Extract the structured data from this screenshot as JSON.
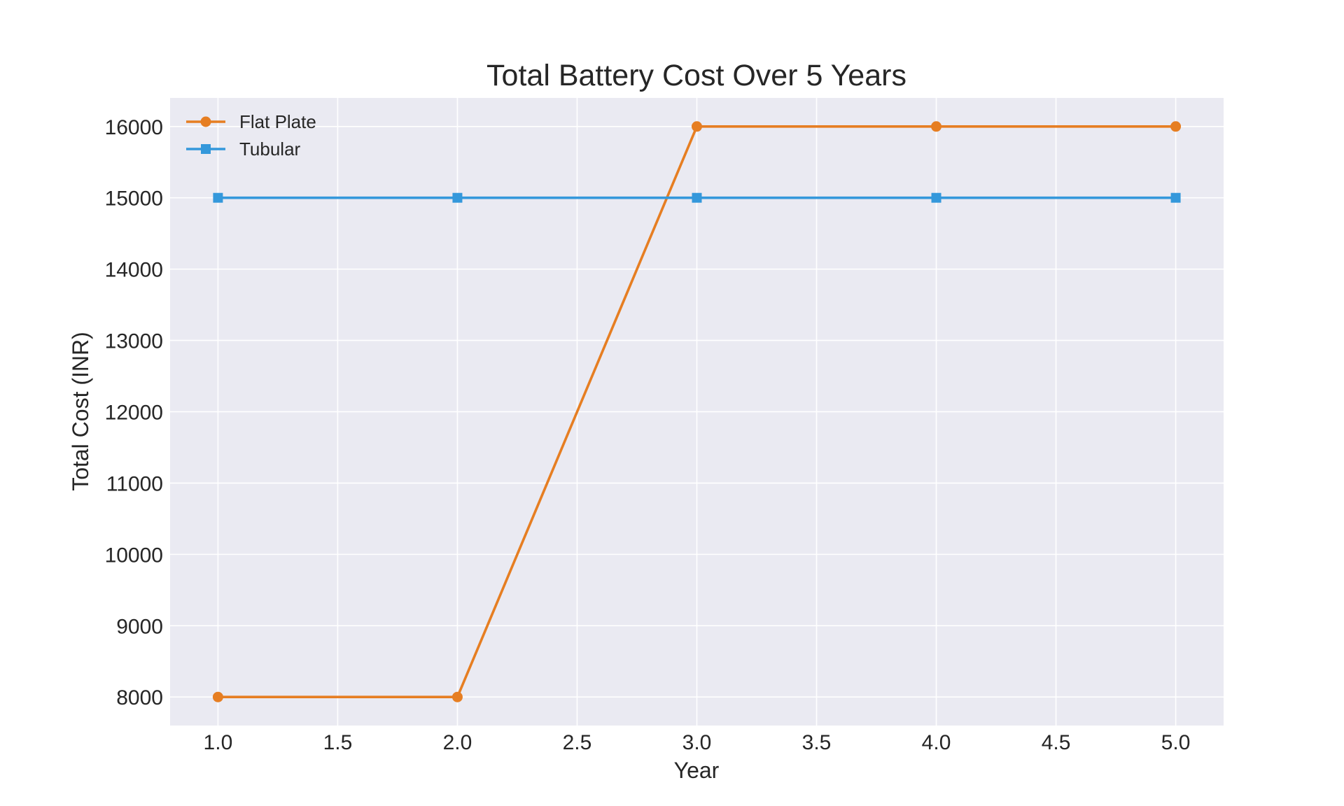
{
  "chart_data": {
    "type": "line",
    "title": "Total Battery Cost Over 5 Years",
    "xlabel": "Year",
    "ylabel": "Total Cost (INR)",
    "x": [
      1.0,
      2.0,
      3.0,
      4.0,
      5.0
    ],
    "xlim": [
      0.8,
      5.2
    ],
    "ylim": [
      7600,
      16400
    ],
    "xticks": [
      1.0,
      1.5,
      2.0,
      2.5,
      3.0,
      3.5,
      4.0,
      4.5,
      5.0
    ],
    "xtick_labels": [
      "1.0",
      "1.5",
      "2.0",
      "2.5",
      "3.0",
      "3.5",
      "4.0",
      "4.5",
      "5.0"
    ],
    "yticks": [
      8000,
      9000,
      10000,
      11000,
      12000,
      13000,
      14000,
      15000,
      16000
    ],
    "ytick_labels": [
      "8000",
      "9000",
      "10000",
      "11000",
      "12000",
      "13000",
      "14000",
      "15000",
      "16000"
    ],
    "grid": true,
    "legend_position": "top-left",
    "background_color": "#eaeaf2",
    "series": [
      {
        "name": "Flat Plate",
        "values": [
          8000,
          8000,
          16000,
          16000,
          16000
        ],
        "color": "#e67e22",
        "marker": "circle"
      },
      {
        "name": "Tubular",
        "values": [
          15000,
          15000,
          15000,
          15000,
          15000
        ],
        "color": "#3498db",
        "marker": "square"
      }
    ]
  }
}
